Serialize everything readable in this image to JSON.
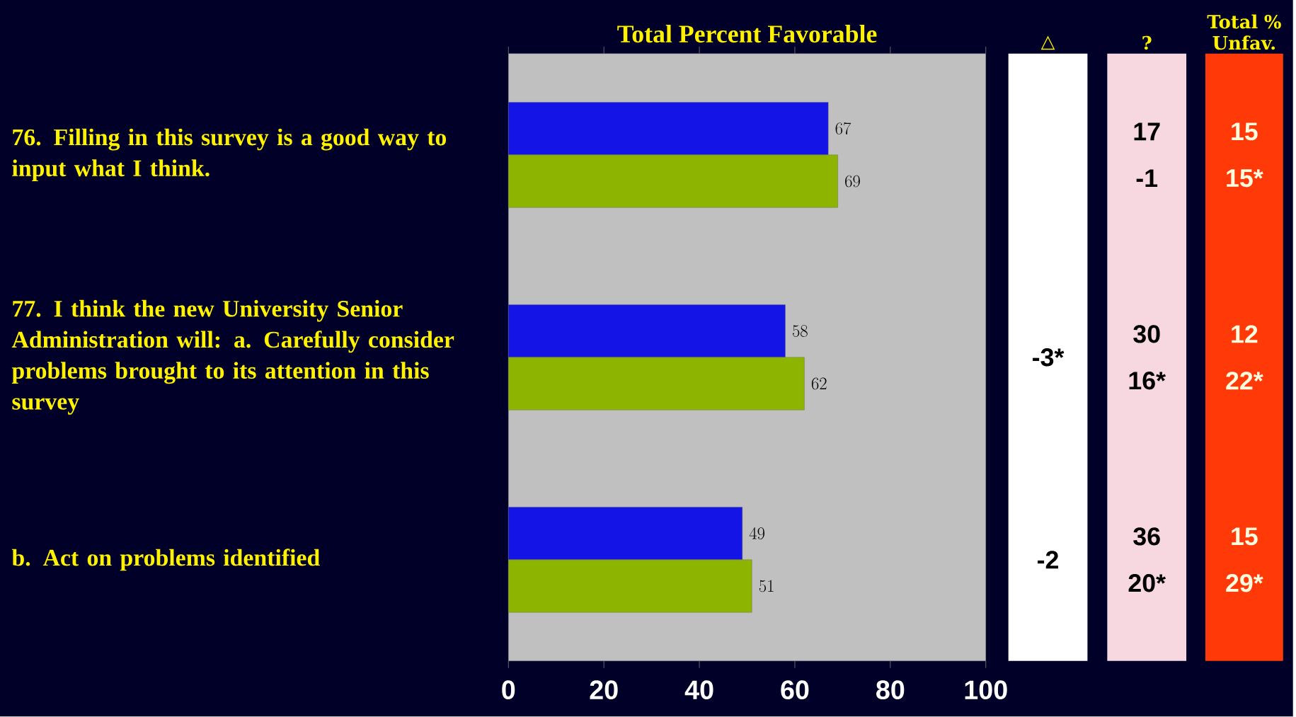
{
  "chart_data": [
    {
      "type": "bar",
      "orientation": "horizontal",
      "title": "Total Percent Favorable",
      "categories": [
        "76. Filling in this survey is a good way to input what I think.",
        "77. I think the new University Senior Administration will: a. Carefully consider problems brought to its attention in this survey",
        "b. Act on problems identified"
      ],
      "series": [
        {
          "color": "#1414e6",
          "values": [
            67,
            58,
            49
          ]
        },
        {
          "color": "#8cb400",
          "values": [
            69,
            62,
            51
          ]
        }
      ],
      "xlim": [
        0,
        100
      ],
      "xticks": [
        0,
        20,
        40,
        60,
        80,
        100
      ],
      "data_labels": true
    },
    {
      "type": "other",
      "title": "△",
      "color": "#ffffff",
      "annotations": [
        "-3*",
        "-2"
      ]
    },
    {
      "type": "other",
      "title": "?",
      "color": "#f8d8e0",
      "annotations": [
        "17",
        "-1",
        "30",
        "16*",
        "36",
        "20*"
      ]
    },
    {
      "type": "other",
      "title": "Total % Unfav.",
      "color": "#ff3a08",
      "annotations": [
        "15",
        "15*",
        "12",
        "22*",
        "15",
        "29*"
      ]
    }
  ]
}
